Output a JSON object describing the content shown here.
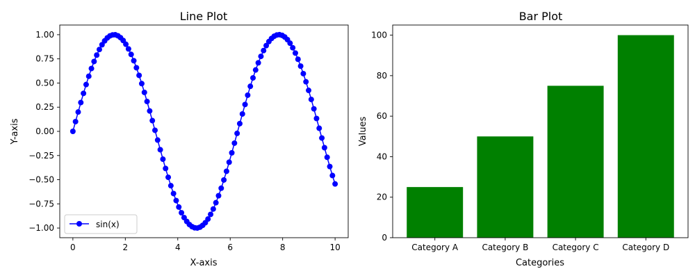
{
  "chart_data": [
    {
      "type": "line",
      "title": "Line Plot",
      "xlabel": "X-axis",
      "ylabel": "Y-axis",
      "xlim": [
        -0.5,
        10.5
      ],
      "ylim": [
        -1.1,
        1.1
      ],
      "xticks": [
        0,
        2,
        4,
        6,
        8,
        10
      ],
      "yticks": [
        -1.0,
        -0.75,
        -0.5,
        -0.25,
        0.0,
        0.25,
        0.5,
        0.75,
        1.0
      ],
      "ytick_labels": [
        "−1.00",
        "−0.75",
        "−0.50",
        "−0.25",
        "0.00",
        "0.25",
        "0.50",
        "0.75",
        "1.00"
      ],
      "grid": false,
      "legend": "lower-left",
      "series": [
        {
          "name": "sin(x)",
          "color": "#0000ff",
          "marker": "circle",
          "x": [
            0.0,
            0.101,
            0.202,
            0.303,
            0.404,
            0.505,
            0.606,
            0.707,
            0.808,
            0.909,
            1.01,
            1.111,
            1.212,
            1.313,
            1.414,
            1.515,
            1.616,
            1.717,
            1.818,
            1.919,
            2.02,
            2.121,
            2.222,
            2.323,
            2.424,
            2.525,
            2.626,
            2.727,
            2.828,
            2.929,
            3.03,
            3.131,
            3.232,
            3.333,
            3.434,
            3.535,
            3.636,
            3.737,
            3.838,
            3.939,
            4.04,
            4.141,
            4.242,
            4.343,
            4.444,
            4.545,
            4.646,
            4.747,
            4.848,
            4.949,
            5.051,
            5.152,
            5.253,
            5.354,
            5.455,
            5.556,
            5.657,
            5.758,
            5.859,
            5.96,
            6.061,
            6.162,
            6.263,
            6.364,
            6.465,
            6.566,
            6.667,
            6.768,
            6.869,
            6.97,
            7.071,
            7.172,
            7.273,
            7.374,
            7.475,
            7.576,
            7.677,
            7.778,
            7.879,
            7.98,
            8.081,
            8.182,
            8.283,
            8.384,
            8.485,
            8.586,
            8.687,
            8.788,
            8.889,
            8.99,
            9.091,
            9.192,
            9.293,
            9.394,
            9.495,
            9.596,
            9.697,
            9.798,
            9.899,
            10.0
          ],
          "y": [
            0.0,
            0.101,
            0.2,
            0.298,
            0.393,
            0.484,
            0.57,
            0.65,
            0.723,
            0.789,
            0.847,
            0.896,
            0.936,
            0.967,
            0.988,
            0.998,
            0.999,
            0.989,
            0.969,
            0.94,
            0.901,
            0.853,
            0.796,
            0.731,
            0.658,
            0.579,
            0.494,
            0.403,
            0.309,
            0.211,
            0.111,
            0.011,
            -0.09,
            -0.19,
            -0.288,
            -0.384,
            -0.475,
            -0.562,
            -0.643,
            -0.716,
            -0.783,
            -0.842,
            -0.892,
            -0.932,
            -0.964,
            -0.986,
            -0.998,
            -1.0,
            -0.991,
            -0.972,
            -0.945,
            -0.907,
            -0.859,
            -0.803,
            -0.738,
            -0.666,
            -0.588,
            -0.503,
            -0.413,
            -0.319,
            -0.222,
            -0.122,
            -0.021,
            0.08,
            0.18,
            0.278,
            0.374,
            0.466,
            0.553,
            0.635,
            0.709,
            0.776,
            0.836,
            0.887,
            0.929,
            0.961,
            0.984,
            0.997,
            1.0,
            0.993,
            0.976,
            0.949,
            0.912,
            0.865,
            0.81,
            0.746,
            0.675,
            0.597,
            0.513,
            0.424,
            0.33,
            0.233,
            0.133,
            0.032,
            -0.069,
            -0.169,
            -0.268,
            -0.364,
            -0.457,
            -0.544
          ]
        }
      ]
    },
    {
      "type": "bar",
      "title": "Bar Plot",
      "xlabel": "Categories",
      "ylabel": "Values",
      "categories": [
        "Category A",
        "Category B",
        "Category C",
        "Category D"
      ],
      "values": [
        25,
        50,
        75,
        100
      ],
      "color": "#008000",
      "ylim": [
        0,
        105
      ],
      "yticks": [
        0,
        20,
        40,
        60,
        80,
        100
      ],
      "grid": false
    }
  ]
}
